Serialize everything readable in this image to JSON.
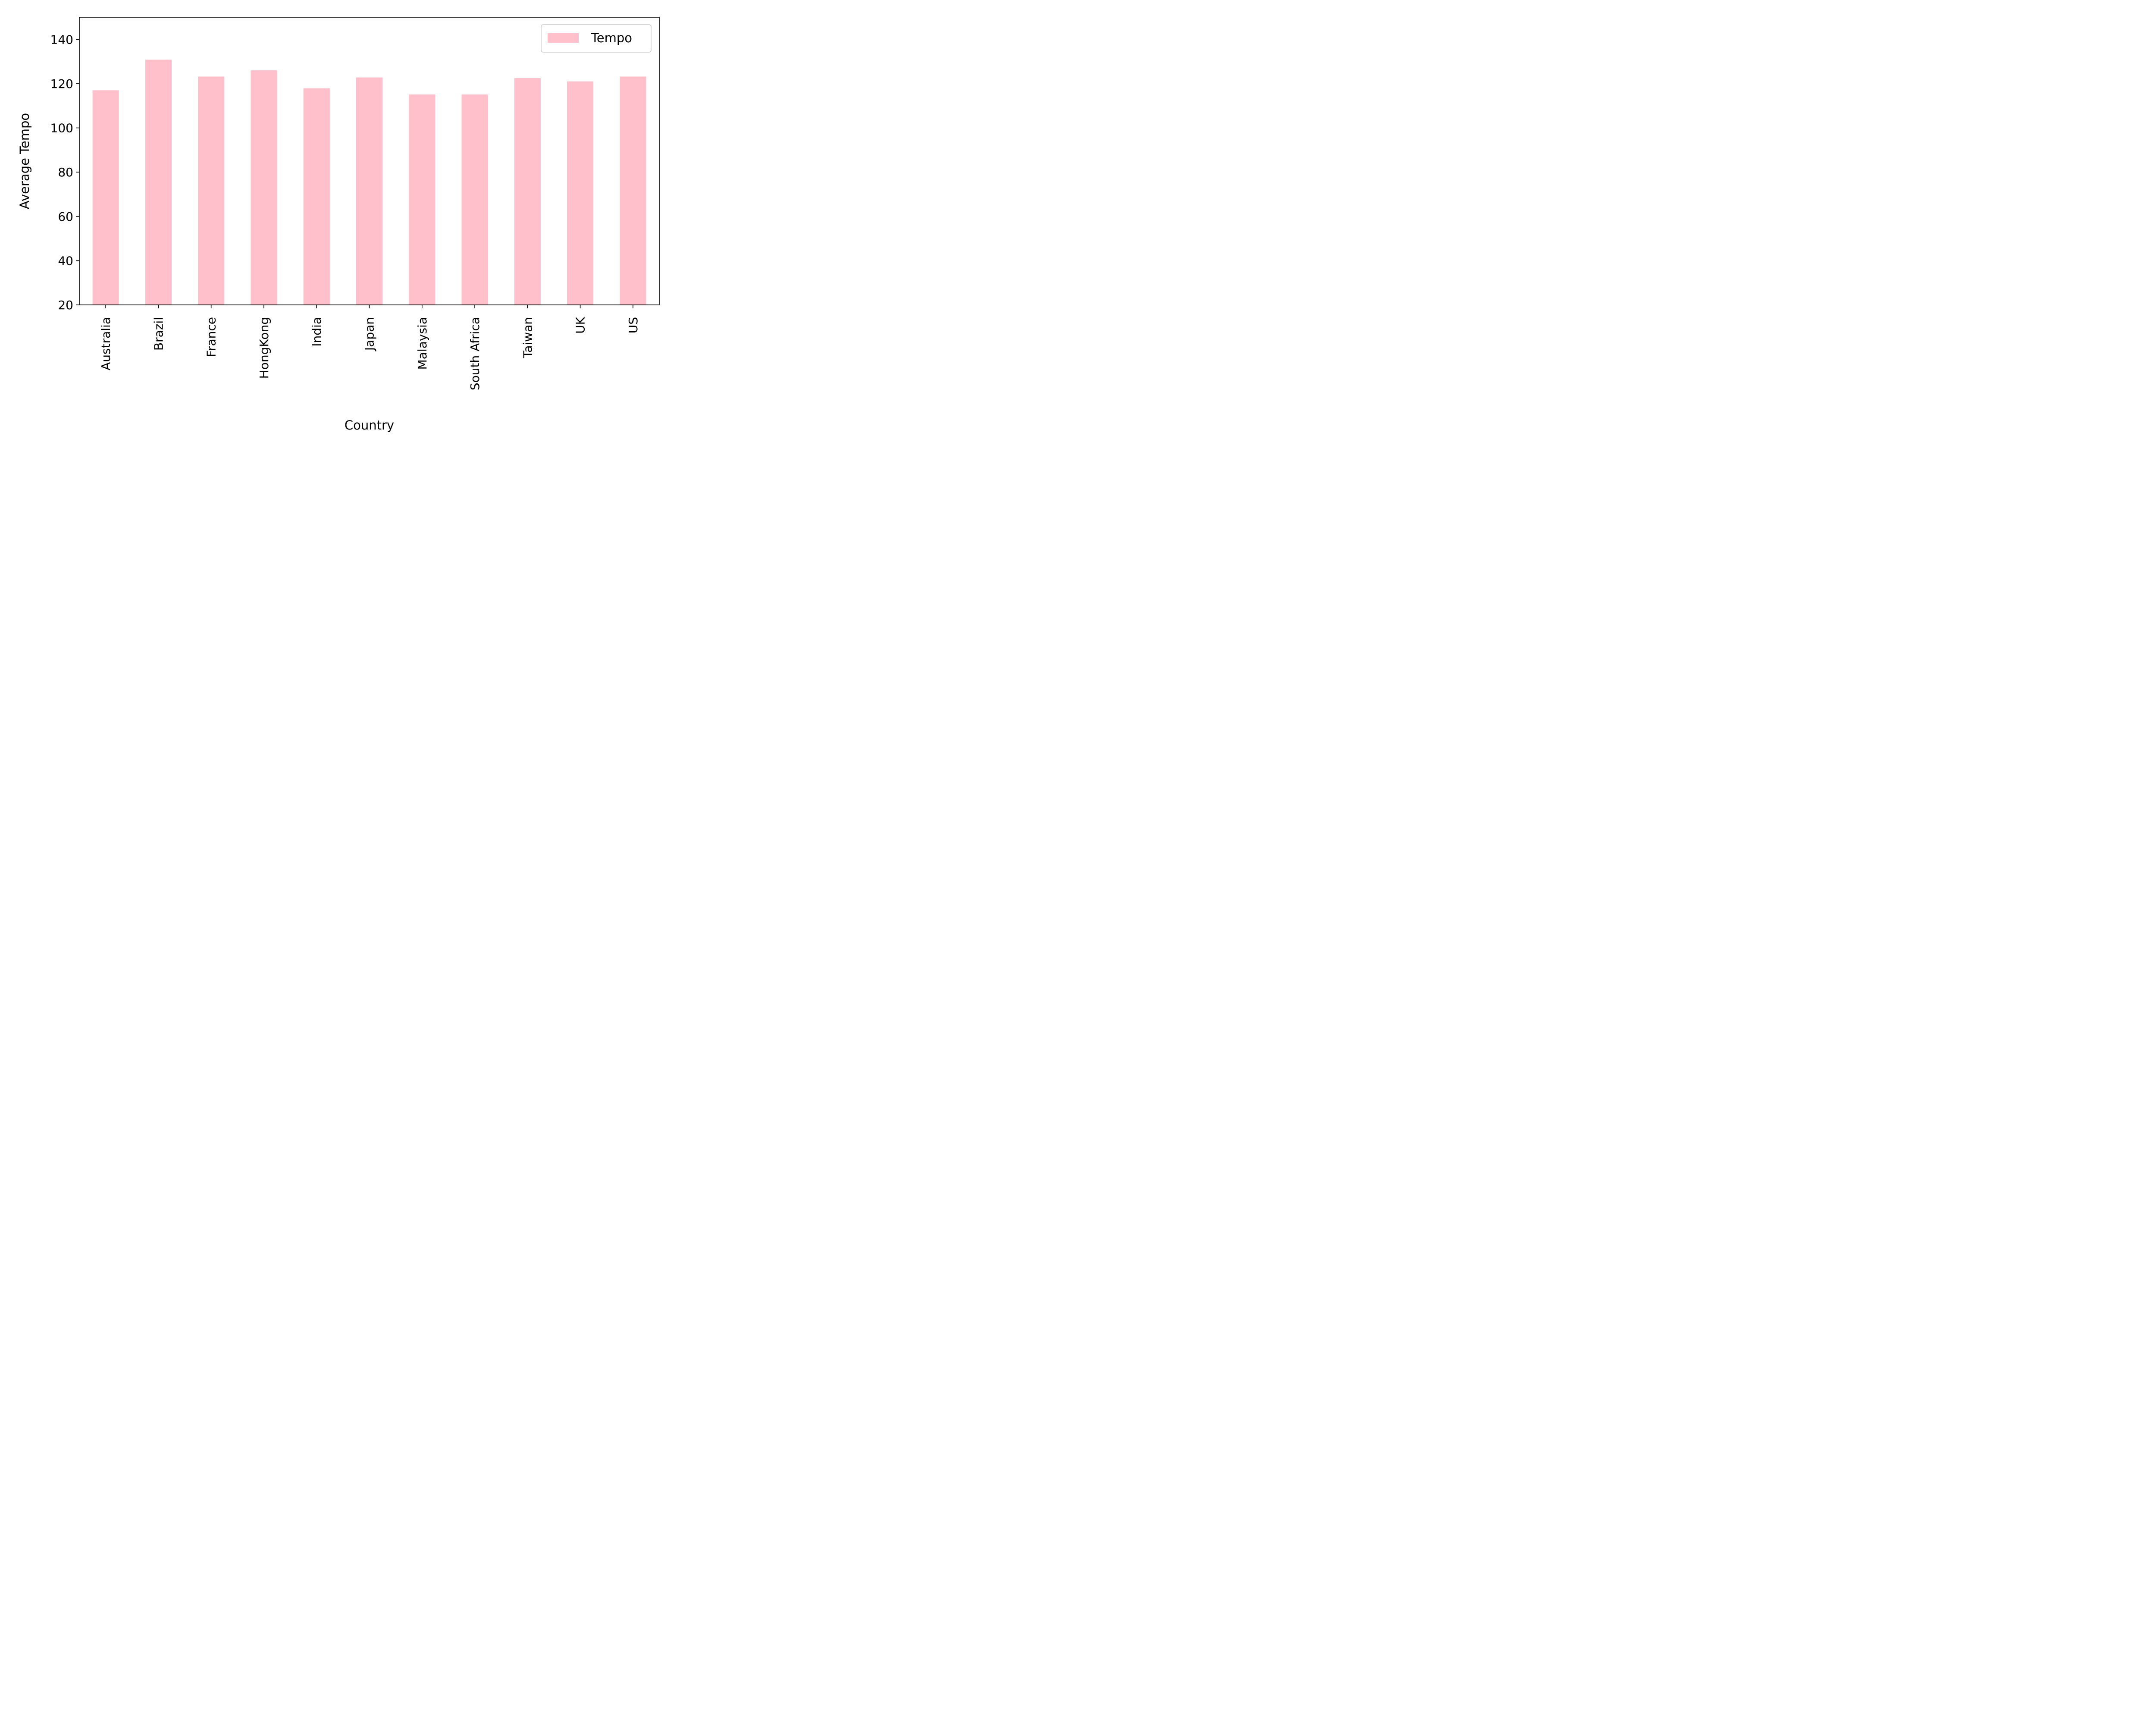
{
  "chart_data": {
    "type": "bar",
    "categories": [
      "Australia",
      "Brazil",
      "France",
      "HongKong",
      "India",
      "Japan",
      "Malaysia",
      "South Africa",
      "Taiwan",
      "UK",
      "US"
    ],
    "series": [
      {
        "name": "Tempo",
        "values": [
          117.0,
          130.8,
          123.2,
          126.0,
          117.9,
          122.8,
          115.1,
          115.1,
          122.5,
          121.0,
          123.2
        ],
        "color": "#ffc0cb"
      }
    ],
    "xlabel": "Country",
    "ylabel": "Average Tempo",
    "ylim": [
      20,
      150
    ],
    "yticks": [
      20,
      40,
      60,
      80,
      100,
      120,
      140
    ],
    "grid": false,
    "legend": {
      "position": "top-right"
    }
  }
}
